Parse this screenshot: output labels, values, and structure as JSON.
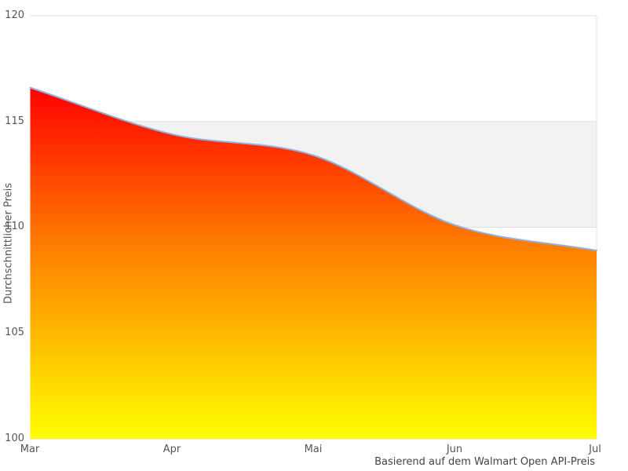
{
  "chart_data": {
    "type": "area",
    "categories": [
      "Mar",
      "Apr",
      "Mai",
      "Jun",
      "Jul"
    ],
    "values": [
      116.6,
      114.4,
      113.4,
      110.1,
      108.9
    ],
    "series_name": "Durchschnittlicher Preis",
    "title": "",
    "xlabel": "Basierend auf dem Walmart Open API-Preis",
    "ylabel": "Durchschnittlicher Preis",
    "ylim": [
      100,
      120
    ],
    "yticks": [
      100,
      105,
      110,
      115,
      120
    ],
    "y_tick_labels": [
      "120",
      "115",
      "110",
      "105",
      "100"
    ],
    "grid": {
      "horizontal_gridlines": true,
      "alternating_bands": true,
      "legend": "none"
    },
    "colors": {
      "gradient_top": "#ff0000",
      "gradient_mid": "#ff8000",
      "gradient_bottom": "#ffff00",
      "line": "#8fb2e0",
      "band": "#f2f2f2",
      "gridline": "#e0e0e0",
      "tick_text": "#555555",
      "caption_text": "#444444"
    }
  }
}
